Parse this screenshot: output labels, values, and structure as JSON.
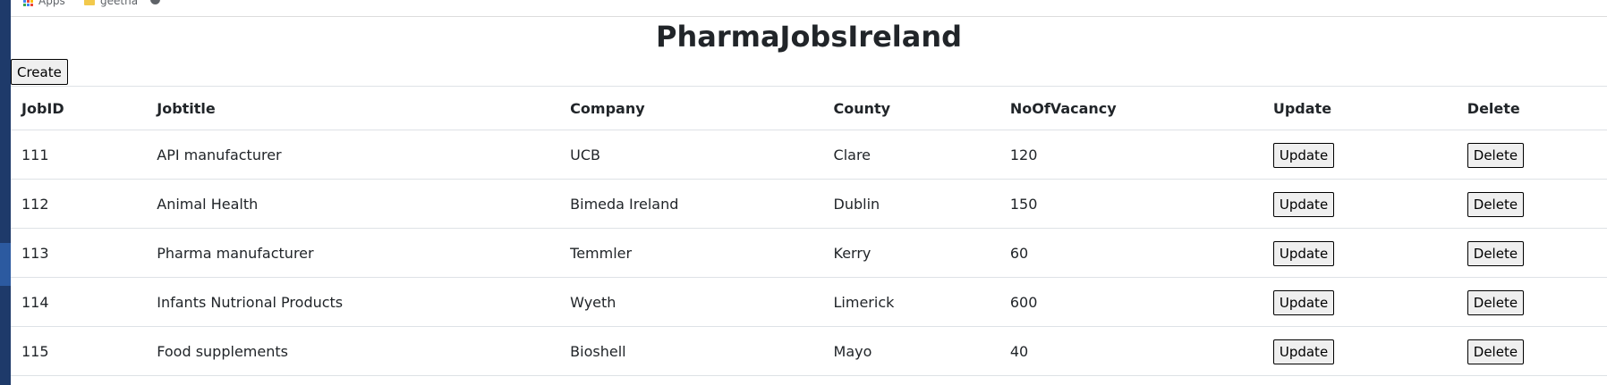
{
  "bookmarks": {
    "apps_label": "Apps",
    "folder_label": "geetha"
  },
  "page": {
    "title": "PharmaJobsIreland",
    "create_label": "Create"
  },
  "table": {
    "headers": {
      "jobid": "JobID",
      "jobtitle": "Jobtitle",
      "company": "Company",
      "county": "County",
      "vacancy": "NoOfVacancy",
      "update": "Update",
      "delete": "Delete"
    },
    "rows": [
      {
        "jobid": "111",
        "jobtitle": "API manufacturer",
        "company": "UCB",
        "county": "Clare",
        "vacancy": "120",
        "update_label": "Update",
        "delete_label": "Delete"
      },
      {
        "jobid": "112",
        "jobtitle": "Animal Health",
        "company": "Bimeda Ireland",
        "county": "Dublin",
        "vacancy": "150",
        "update_label": "Update",
        "delete_label": "Delete"
      },
      {
        "jobid": "113",
        "jobtitle": "Pharma manufacturer",
        "company": "Temmler",
        "county": "Kerry",
        "vacancy": "60",
        "update_label": "Update",
        "delete_label": "Delete"
      },
      {
        "jobid": "114",
        "jobtitle": "Infants Nutrional Products",
        "company": "Wyeth",
        "county": "Limerick",
        "vacancy": "600",
        "update_label": "Update",
        "delete_label": "Delete"
      },
      {
        "jobid": "115",
        "jobtitle": "Food supplements",
        "company": "Bioshell",
        "county": "Mayo",
        "vacancy": "40",
        "update_label": "Update",
        "delete_label": "Delete"
      }
    ]
  },
  "colors": {
    "apps_grid": [
      "#ea4335",
      "#fbbc05",
      "#34a853",
      "#4285f4",
      "#ea4335",
      "#fbbc05",
      "#34a853",
      "#4285f4",
      "#ea4335"
    ]
  }
}
